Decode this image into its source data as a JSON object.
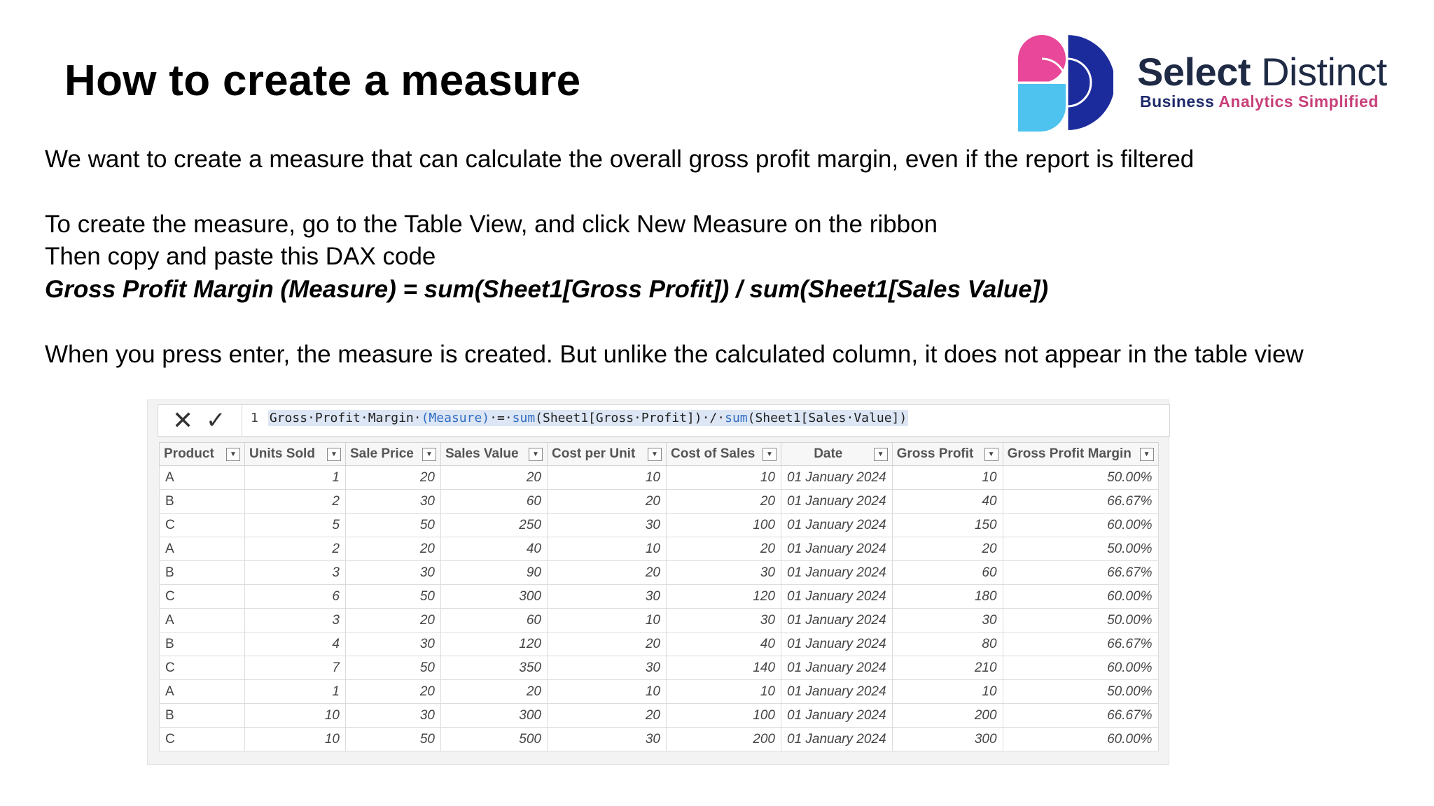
{
  "slide": {
    "title": "How to create a measure",
    "lines": [
      "We want to create a measure that can calculate the overall gross profit margin, even if the report is filtered",
      "To create the measure, go to the Table View, and click New Measure on the ribbon",
      "Then copy and paste this DAX code",
      "Gross Profit Margin (Measure) = sum(Sheet1[Gross Profit]) / sum(Sheet1[Sales Value])",
      "When you press enter, the measure is created. But unlike the calculated column, it does not appear in the table view"
    ]
  },
  "logo": {
    "name_bold": "Select",
    "name_rest": "Distinct",
    "tag_part1": "Business",
    "tag_part2": "Analytics Simplified",
    "colors": {
      "pink": "#e8479a",
      "cyan": "#4fc3f0",
      "navy": "#1c2b9c",
      "dark": "#1f2a44"
    }
  },
  "formula_bar": {
    "cancel_icon": "close-icon",
    "commit_icon": "check-icon",
    "line_number": "1",
    "code_a": "Gross·Profit·Margin·",
    "code_kw1": "(Measure)",
    "code_b": "·=·",
    "code_kw2": "sum",
    "code_c": "(Sheet1[Gross·Profit])·/·",
    "code_kw3": "sum",
    "code_d": "(Sheet1[Sales·Value])"
  },
  "table": {
    "columns": [
      "Product",
      "Units Sold",
      "Sale Price",
      "Sales Value",
      "Cost per Unit",
      "Cost of Sales",
      "Date",
      "Gross Profit",
      "Gross Profit Margin"
    ],
    "rows": [
      [
        "A",
        "1",
        "20",
        "20",
        "10",
        "10",
        "01 January 2024",
        "10",
        "50.00%"
      ],
      [
        "B",
        "2",
        "30",
        "60",
        "20",
        "20",
        "01 January 2024",
        "40",
        "66.67%"
      ],
      [
        "C",
        "5",
        "50",
        "250",
        "30",
        "100",
        "01 January 2024",
        "150",
        "60.00%"
      ],
      [
        "A",
        "2",
        "20",
        "40",
        "10",
        "20",
        "01 January 2024",
        "20",
        "50.00%"
      ],
      [
        "B",
        "3",
        "30",
        "90",
        "20",
        "30",
        "01 January 2024",
        "60",
        "66.67%"
      ],
      [
        "C",
        "6",
        "50",
        "300",
        "30",
        "120",
        "01 January 2024",
        "180",
        "60.00%"
      ],
      [
        "A",
        "3",
        "20",
        "60",
        "10",
        "30",
        "01 January 2024",
        "30",
        "50.00%"
      ],
      [
        "B",
        "4",
        "30",
        "120",
        "20",
        "40",
        "01 January 2024",
        "80",
        "66.67%"
      ],
      [
        "C",
        "7",
        "50",
        "350",
        "30",
        "140",
        "01 January 2024",
        "210",
        "60.00%"
      ],
      [
        "A",
        "1",
        "20",
        "20",
        "10",
        "10",
        "01 January 2024",
        "10",
        "50.00%"
      ],
      [
        "B",
        "10",
        "30",
        "300",
        "20",
        "100",
        "01 January 2024",
        "200",
        "66.67%"
      ],
      [
        "C",
        "10",
        "50",
        "500",
        "30",
        "200",
        "01 January 2024",
        "300",
        "60.00%"
      ]
    ]
  }
}
